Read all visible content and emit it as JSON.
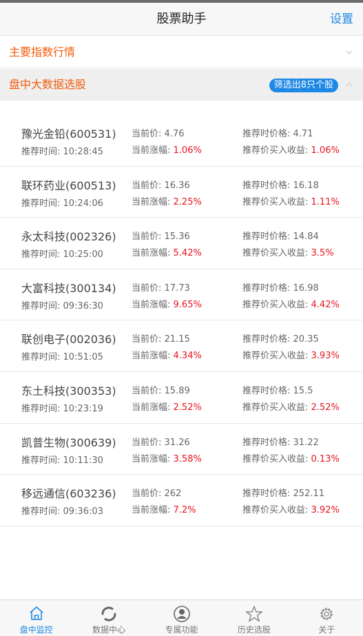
{
  "header": {
    "title": "股票助手",
    "settings_label": "设置"
  },
  "sections": {
    "index_quotes": {
      "label": "主要指数行情"
    },
    "bigdata_pick": {
      "label": "盘中大数据选股",
      "badge": "筛选出8只个股"
    }
  },
  "stocks": [
    {
      "name": "豫光金铅(600531)",
      "time": "推荐时间: 10:28:45",
      "price_label": "当前价: ",
      "price": "4.76",
      "change_label": "当前涨幅: ",
      "change": "1.06%",
      "rec_price_label": "推荐时价格: ",
      "rec_price": "4.71",
      "profit_label": "推荐价买入收益: ",
      "profit": "1.06%"
    },
    {
      "name": "联环药业(600513)",
      "time": "推荐时间: 10:24:06",
      "price_label": "当前价: ",
      "price": "16.36",
      "change_label": "当前涨幅: ",
      "change": "2.25%",
      "rec_price_label": "推荐时价格: ",
      "rec_price": "16.18",
      "profit_label": "推荐价买入收益: ",
      "profit": "1.11%"
    },
    {
      "name": "永太科技(002326)",
      "time": "推荐时间: 10:25:00",
      "price_label": "当前价: ",
      "price": "15.36",
      "change_label": "当前涨幅: ",
      "change": "5.42%",
      "rec_price_label": "推荐时价格: ",
      "rec_price": "14.84",
      "profit_label": "推荐价买入收益: ",
      "profit": "3.5%"
    },
    {
      "name": "大富科技(300134)",
      "time": "推荐时间: 09:36:30",
      "price_label": "当前价: ",
      "price": "17.73",
      "change_label": "当前涨幅: ",
      "change": "9.65%",
      "rec_price_label": "推荐时价格: ",
      "rec_price": "16.98",
      "profit_label": "推荐价买入收益: ",
      "profit": "4.42%"
    },
    {
      "name": "联创电子(002036)",
      "time": "推荐时间: 10:51:05",
      "price_label": "当前价: ",
      "price": "21.15",
      "change_label": "当前涨幅: ",
      "change": "4.34%",
      "rec_price_label": "推荐时价格: ",
      "rec_price": "20.35",
      "profit_label": "推荐价买入收益: ",
      "profit": "3.93%"
    },
    {
      "name": "东土科技(300353)",
      "time": "推荐时间: 10:23:19",
      "price_label": "当前价: ",
      "price": "15.89",
      "change_label": "当前涨幅: ",
      "change": "2.52%",
      "rec_price_label": "推荐时价格: ",
      "rec_price": "15.5",
      "profit_label": "推荐价买入收益: ",
      "profit": "2.52%"
    },
    {
      "name": "凯普生物(300639)",
      "time": "推荐时间: 10:11:30",
      "price_label": "当前价: ",
      "price": "31.26",
      "change_label": "当前涨幅: ",
      "change": "3.58%",
      "rec_price_label": "推荐时价格: ",
      "rec_price": "31.22",
      "profit_label": "推荐价买入收益: ",
      "profit": "0.13%"
    },
    {
      "name": "移远通信(603236)",
      "time": "推荐时间: 09:36:03",
      "price_label": "当前价: ",
      "price": "262",
      "change_label": "当前涨幅: ",
      "change": "7.2%",
      "rec_price_label": "推荐时价格: ",
      "rec_price": "252.11",
      "profit_label": "推荐价买入收益: ",
      "profit": "3.92%"
    }
  ],
  "tabbar": {
    "monitor": "盘中监控",
    "data_center": "数据中心",
    "exclusive": "专属功能",
    "history": "历史选股",
    "about": "关于"
  },
  "colors": {
    "accent": "#1e88e5",
    "section_orange": "#f25c0a",
    "gain_red": "#e8141e"
  },
  "icons": {
    "monitor": "home-icon",
    "data_center": "refresh-icon",
    "exclusive": "user-icon",
    "history": "star-icon",
    "about": "gear-icon"
  }
}
